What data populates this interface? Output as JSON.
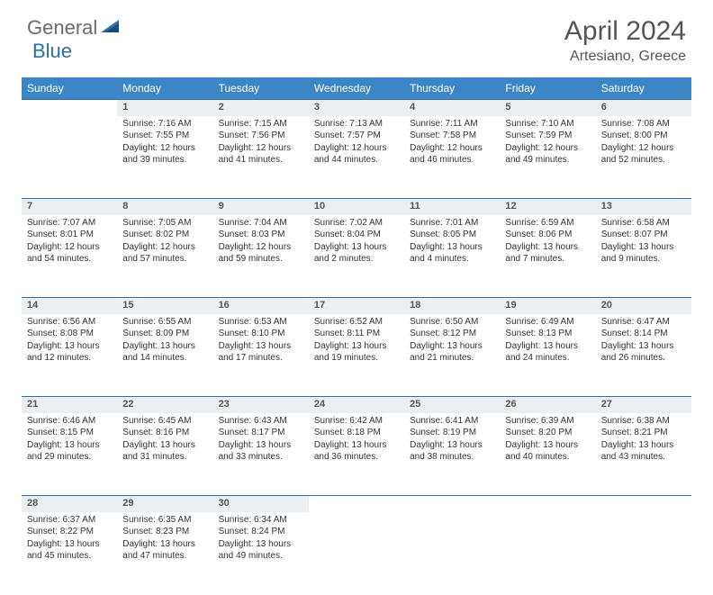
{
  "logo": {
    "general": "General",
    "blue": "Blue"
  },
  "title": "April 2024",
  "location": "Artesiano, Greece",
  "colors": {
    "header_bg": "#3d86c6",
    "header_text": "#ffffff",
    "daynum_bg": "#eceff1",
    "border": "#2f6fa8",
    "body_text": "#333333",
    "title_text": "#555555",
    "logo_gray": "#6b6b6b",
    "logo_blue": "#2f6fa8"
  },
  "day_headers": [
    "Sunday",
    "Monday",
    "Tuesday",
    "Wednesday",
    "Thursday",
    "Friday",
    "Saturday"
  ],
  "weeks": [
    [
      null,
      {
        "n": "1",
        "sr": "Sunrise: 7:16 AM",
        "ss": "Sunset: 7:55 PM",
        "d1": "Daylight: 12 hours",
        "d2": "and 39 minutes."
      },
      {
        "n": "2",
        "sr": "Sunrise: 7:15 AM",
        "ss": "Sunset: 7:56 PM",
        "d1": "Daylight: 12 hours",
        "d2": "and 41 minutes."
      },
      {
        "n": "3",
        "sr": "Sunrise: 7:13 AM",
        "ss": "Sunset: 7:57 PM",
        "d1": "Daylight: 12 hours",
        "d2": "and 44 minutes."
      },
      {
        "n": "4",
        "sr": "Sunrise: 7:11 AM",
        "ss": "Sunset: 7:58 PM",
        "d1": "Daylight: 12 hours",
        "d2": "and 46 minutes."
      },
      {
        "n": "5",
        "sr": "Sunrise: 7:10 AM",
        "ss": "Sunset: 7:59 PM",
        "d1": "Daylight: 12 hours",
        "d2": "and 49 minutes."
      },
      {
        "n": "6",
        "sr": "Sunrise: 7:08 AM",
        "ss": "Sunset: 8:00 PM",
        "d1": "Daylight: 12 hours",
        "d2": "and 52 minutes."
      }
    ],
    [
      {
        "n": "7",
        "sr": "Sunrise: 7:07 AM",
        "ss": "Sunset: 8:01 PM",
        "d1": "Daylight: 12 hours",
        "d2": "and 54 minutes."
      },
      {
        "n": "8",
        "sr": "Sunrise: 7:05 AM",
        "ss": "Sunset: 8:02 PM",
        "d1": "Daylight: 12 hours",
        "d2": "and 57 minutes."
      },
      {
        "n": "9",
        "sr": "Sunrise: 7:04 AM",
        "ss": "Sunset: 8:03 PM",
        "d1": "Daylight: 12 hours",
        "d2": "and 59 minutes."
      },
      {
        "n": "10",
        "sr": "Sunrise: 7:02 AM",
        "ss": "Sunset: 8:04 PM",
        "d1": "Daylight: 13 hours",
        "d2": "and 2 minutes."
      },
      {
        "n": "11",
        "sr": "Sunrise: 7:01 AM",
        "ss": "Sunset: 8:05 PM",
        "d1": "Daylight: 13 hours",
        "d2": "and 4 minutes."
      },
      {
        "n": "12",
        "sr": "Sunrise: 6:59 AM",
        "ss": "Sunset: 8:06 PM",
        "d1": "Daylight: 13 hours",
        "d2": "and 7 minutes."
      },
      {
        "n": "13",
        "sr": "Sunrise: 6:58 AM",
        "ss": "Sunset: 8:07 PM",
        "d1": "Daylight: 13 hours",
        "d2": "and 9 minutes."
      }
    ],
    [
      {
        "n": "14",
        "sr": "Sunrise: 6:56 AM",
        "ss": "Sunset: 8:08 PM",
        "d1": "Daylight: 13 hours",
        "d2": "and 12 minutes."
      },
      {
        "n": "15",
        "sr": "Sunrise: 6:55 AM",
        "ss": "Sunset: 8:09 PM",
        "d1": "Daylight: 13 hours",
        "d2": "and 14 minutes."
      },
      {
        "n": "16",
        "sr": "Sunrise: 6:53 AM",
        "ss": "Sunset: 8:10 PM",
        "d1": "Daylight: 13 hours",
        "d2": "and 17 minutes."
      },
      {
        "n": "17",
        "sr": "Sunrise: 6:52 AM",
        "ss": "Sunset: 8:11 PM",
        "d1": "Daylight: 13 hours",
        "d2": "and 19 minutes."
      },
      {
        "n": "18",
        "sr": "Sunrise: 6:50 AM",
        "ss": "Sunset: 8:12 PM",
        "d1": "Daylight: 13 hours",
        "d2": "and 21 minutes."
      },
      {
        "n": "19",
        "sr": "Sunrise: 6:49 AM",
        "ss": "Sunset: 8:13 PM",
        "d1": "Daylight: 13 hours",
        "d2": "and 24 minutes."
      },
      {
        "n": "20",
        "sr": "Sunrise: 6:47 AM",
        "ss": "Sunset: 8:14 PM",
        "d1": "Daylight: 13 hours",
        "d2": "and 26 minutes."
      }
    ],
    [
      {
        "n": "21",
        "sr": "Sunrise: 6:46 AM",
        "ss": "Sunset: 8:15 PM",
        "d1": "Daylight: 13 hours",
        "d2": "and 29 minutes."
      },
      {
        "n": "22",
        "sr": "Sunrise: 6:45 AM",
        "ss": "Sunset: 8:16 PM",
        "d1": "Daylight: 13 hours",
        "d2": "and 31 minutes."
      },
      {
        "n": "23",
        "sr": "Sunrise: 6:43 AM",
        "ss": "Sunset: 8:17 PM",
        "d1": "Daylight: 13 hours",
        "d2": "and 33 minutes."
      },
      {
        "n": "24",
        "sr": "Sunrise: 6:42 AM",
        "ss": "Sunset: 8:18 PM",
        "d1": "Daylight: 13 hours",
        "d2": "and 36 minutes."
      },
      {
        "n": "25",
        "sr": "Sunrise: 6:41 AM",
        "ss": "Sunset: 8:19 PM",
        "d1": "Daylight: 13 hours",
        "d2": "and 38 minutes."
      },
      {
        "n": "26",
        "sr": "Sunrise: 6:39 AM",
        "ss": "Sunset: 8:20 PM",
        "d1": "Daylight: 13 hours",
        "d2": "and 40 minutes."
      },
      {
        "n": "27",
        "sr": "Sunrise: 6:38 AM",
        "ss": "Sunset: 8:21 PM",
        "d1": "Daylight: 13 hours",
        "d2": "and 43 minutes."
      }
    ],
    [
      {
        "n": "28",
        "sr": "Sunrise: 6:37 AM",
        "ss": "Sunset: 8:22 PM",
        "d1": "Daylight: 13 hours",
        "d2": "and 45 minutes."
      },
      {
        "n": "29",
        "sr": "Sunrise: 6:35 AM",
        "ss": "Sunset: 8:23 PM",
        "d1": "Daylight: 13 hours",
        "d2": "and 47 minutes."
      },
      {
        "n": "30",
        "sr": "Sunrise: 6:34 AM",
        "ss": "Sunset: 8:24 PM",
        "d1": "Daylight: 13 hours",
        "d2": "and 49 minutes."
      },
      null,
      null,
      null,
      null
    ]
  ]
}
